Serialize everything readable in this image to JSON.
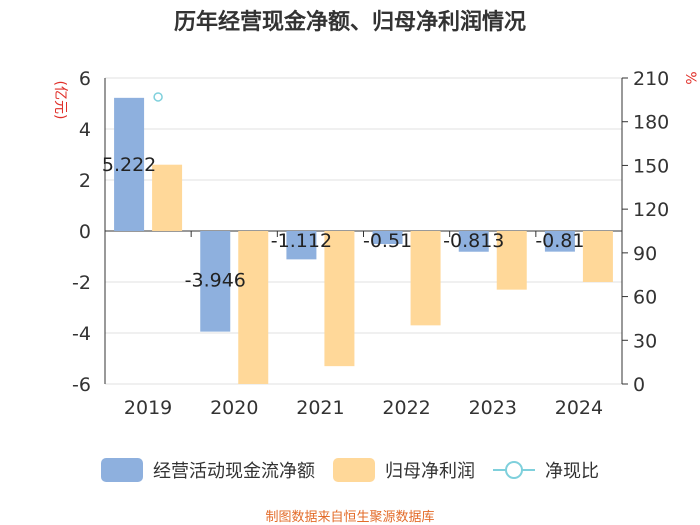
{
  "chart_data": {
    "type": "bar",
    "title": "历年经营现金净额、归母净利润情况",
    "categories": [
      "2019",
      "2020",
      "2021",
      "2022",
      "2023",
      "2024"
    ],
    "y_left": {
      "label": "(亿元)",
      "min": -6,
      "max": 6,
      "ticks": [
        -6,
        -4,
        -2,
        0,
        2,
        4,
        6
      ]
    },
    "y_right": {
      "label": "%",
      "min": 0,
      "max": 210,
      "ticks": [
        0,
        30,
        60,
        90,
        120,
        150,
        180,
        210
      ]
    },
    "series": [
      {
        "name": "经营活动现金流净额",
        "type": "bar",
        "axis": "left",
        "color": "#8eb0de",
        "values": [
          5.222,
          -3.946,
          -1.112,
          -0.51,
          -0.813,
          -0.81
        ],
        "labels": [
          "5.222",
          "-3.946",
          "-1.112",
          "-0.51",
          "-0.813",
          "-0.81"
        ]
      },
      {
        "name": "归母净利润",
        "type": "bar",
        "axis": "left",
        "color": "#ffd899",
        "values": [
          2.6,
          -6.0,
          -5.3,
          -3.7,
          -2.3,
          -2.0
        ]
      },
      {
        "name": "净现比",
        "type": "line",
        "axis": "right",
        "color": "#7fd0dc",
        "values": [
          197,
          null,
          null,
          null,
          null,
          null
        ]
      }
    ]
  },
  "source_text": "制图数据来自恒生聚源数据库"
}
